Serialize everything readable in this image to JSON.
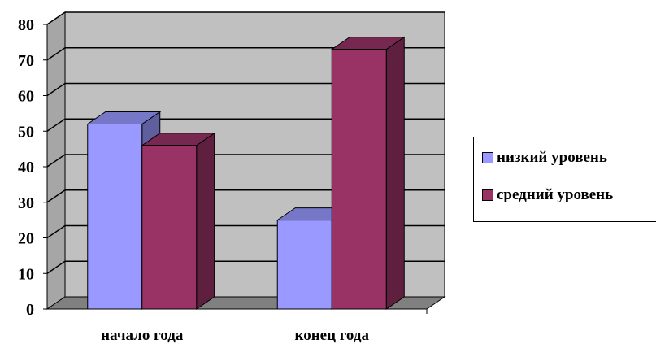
{
  "chart_data": {
    "type": "bar",
    "categories": [
      "начало года",
      "конец года"
    ],
    "series": [
      {
        "name": "низкий уровень",
        "values": [
          52,
          25
        ],
        "color": "#9999ff"
      },
      {
        "name": "средний уровень",
        "values": [
          46,
          73
        ],
        "color": "#993366"
      }
    ],
    "ylim": [
      0,
      80
    ],
    "yticks": [
      "0",
      "10",
      "20",
      "30",
      "40",
      "50",
      "60",
      "70",
      "80"
    ],
    "grid": true,
    "legend_position": "right",
    "style": "3d-column",
    "wall_color": "#c0c0c0",
    "floor_color": "#808080"
  }
}
